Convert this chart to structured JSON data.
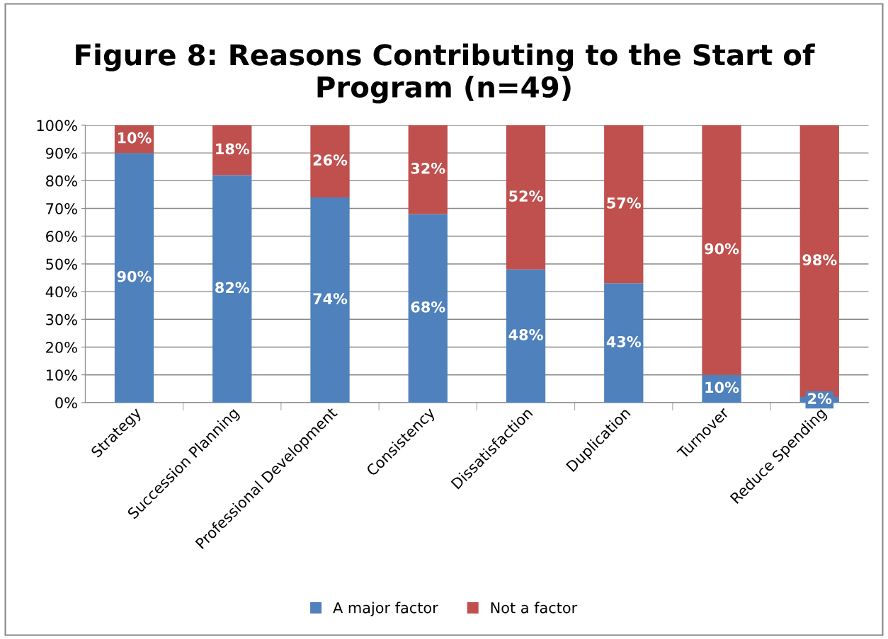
{
  "chart_data": {
    "type": "bar",
    "title": "Figure 8: Reasons Contributing to the Start of Program (n=49)",
    "categories": [
      "Strategy",
      "Succession Planning",
      "Professional Development",
      "Consistency",
      "Dissatisfaction",
      "Duplication",
      "Turnover",
      "Reduce Spending"
    ],
    "stacked": true,
    "series": [
      {
        "name": "A major factor",
        "color": "#4f81bd",
        "values": [
          90,
          82,
          74,
          68,
          48,
          43,
          10,
          2
        ],
        "value_labels": [
          "90%",
          "82%",
          "74%",
          "68%",
          "48%",
          "43%",
          "10%",
          "2%"
        ]
      },
      {
        "name": "Not a factor",
        "color": "#c0504d",
        "values": [
          10,
          18,
          26,
          32,
          52,
          57,
          90,
          98
        ],
        "value_labels": [
          "10%",
          "18%",
          "26%",
          "32%",
          "52%",
          "57%",
          "90%",
          "98%"
        ]
      }
    ],
    "ylim": [
      0,
      100
    ],
    "yticks": [
      {
        "value": 0,
        "label": "0%"
      },
      {
        "value": 10,
        "label": "10%"
      },
      {
        "value": 20,
        "label": "20%"
      },
      {
        "value": 30,
        "label": "30%"
      },
      {
        "value": 40,
        "label": "40%"
      },
      {
        "value": 50,
        "label": "50%"
      },
      {
        "value": 60,
        "label": "60%"
      },
      {
        "value": 70,
        "label": "70%"
      },
      {
        "value": 80,
        "label": "80%"
      },
      {
        "value": 90,
        "label": "90%"
      },
      {
        "value": 100,
        "label": "100%"
      }
    ],
    "grid": "y",
    "legend": "bottom"
  }
}
